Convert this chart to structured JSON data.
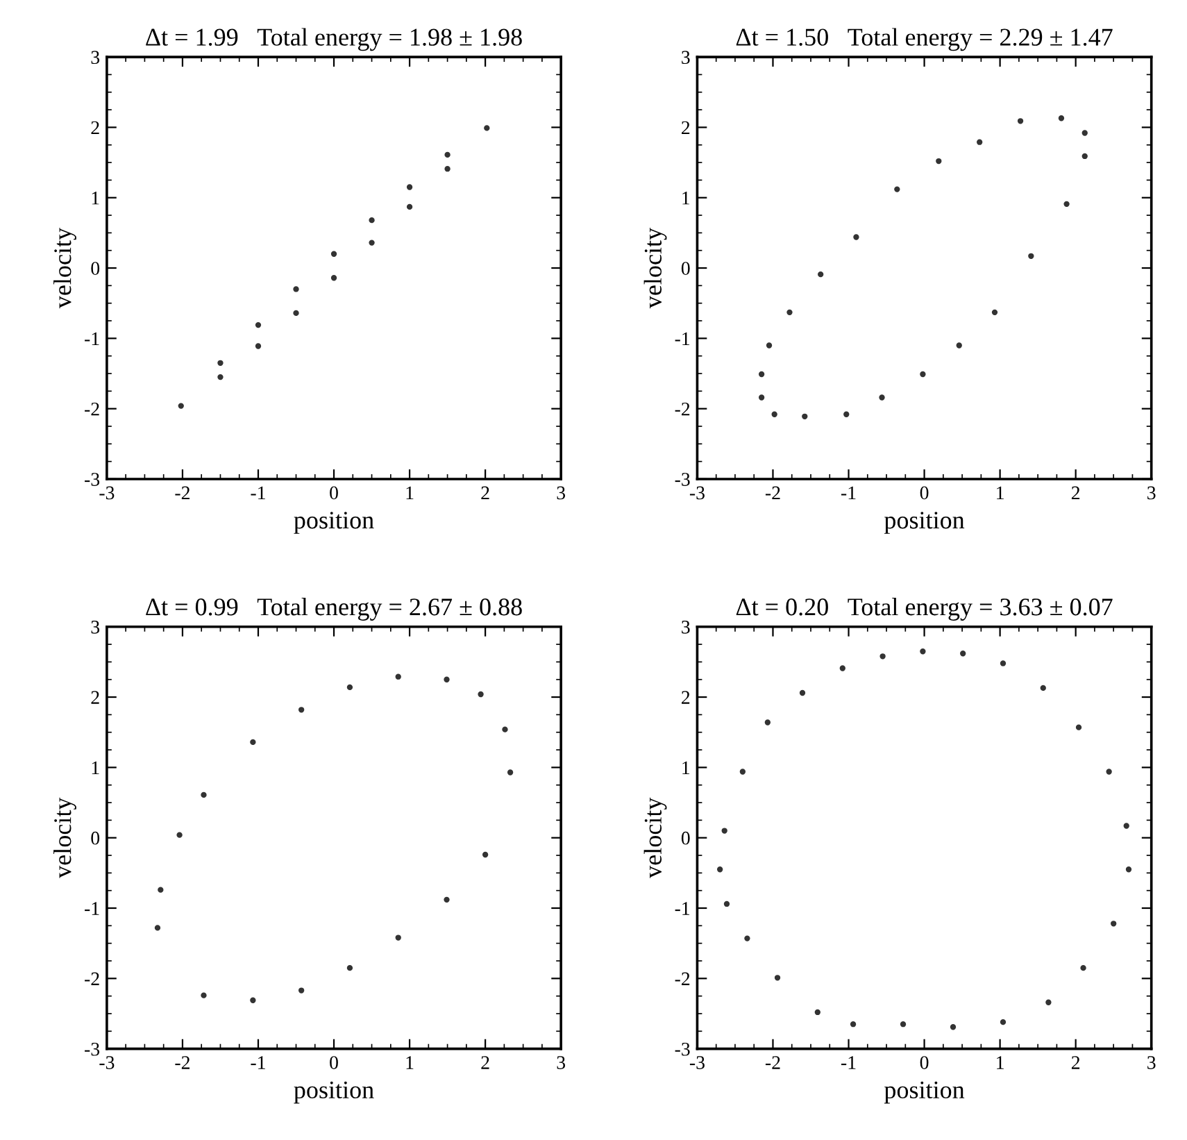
{
  "chart_data": [
    {
      "type": "scatter",
      "title": "Δt = 1.99   Total energy = 1.98 ± 1.98",
      "xlabel": "position",
      "ylabel": "velocity",
      "xlim": [
        -3,
        3
      ],
      "ylim": [
        -3,
        3
      ],
      "xticks": [
        -3,
        -2,
        -1,
        0,
        1,
        2,
        3
      ],
      "yticks": [
        -3,
        -2,
        -1,
        0,
        1,
        2,
        3
      ],
      "grid": false,
      "marker": "circle",
      "series": [
        {
          "color": "#333333",
          "x": [
            -2.02,
            -1.5,
            -1.0,
            -0.5,
            0.0,
            0.5,
            1.0,
            1.5,
            2.02,
            1.5,
            1.0,
            0.5,
            0.0,
            -0.5,
            -1.0,
            -1.5
          ],
          "values": [
            -1.96,
            -1.35,
            -0.81,
            -0.3,
            0.2,
            0.68,
            1.15,
            1.61,
            1.99,
            1.41,
            0.87,
            0.36,
            -0.14,
            -0.64,
            -1.11,
            -1.55
          ]
        }
      ]
    },
    {
      "type": "scatter",
      "title": "Δt = 1.50   Total energy = 2.29 ± 1.47",
      "xlabel": "position",
      "ylabel": "velocity",
      "xlim": [
        -3,
        3
      ],
      "ylim": [
        -3,
        3
      ],
      "xticks": [
        -3,
        -2,
        -1,
        0,
        1,
        2,
        3
      ],
      "yticks": [
        -3,
        -2,
        -1,
        0,
        1,
        2,
        3
      ],
      "grid": false,
      "marker": "circle",
      "series": [
        {
          "color": "#333333",
          "x": [
            -2.15,
            -2.15,
            -1.98,
            -1.58,
            -1.03,
            -0.56,
            -0.02,
            0.46,
            0.93,
            1.41,
            1.88,
            2.12,
            2.12,
            1.81,
            1.27,
            0.73,
            0.19,
            -0.36,
            -0.9,
            -1.37,
            -1.78,
            -2.05
          ],
          "values": [
            -1.51,
            -1.84,
            -2.08,
            -2.11,
            -2.08,
            -1.84,
            -1.51,
            -1.1,
            -0.63,
            0.17,
            0.91,
            1.59,
            1.92,
            2.13,
            2.09,
            1.79,
            1.52,
            1.12,
            0.44,
            -0.09,
            -0.63,
            -1.1
          ]
        }
      ]
    },
    {
      "type": "scatter",
      "title": "Δt = 0.99   Total energy = 2.67 ± 0.88",
      "xlabel": "position",
      "ylabel": "velocity",
      "xlim": [
        -3,
        3
      ],
      "ylim": [
        -3,
        3
      ],
      "xticks": [
        -3,
        -2,
        -1,
        0,
        1,
        2,
        3
      ],
      "yticks": [
        -3,
        -2,
        -1,
        0,
        1,
        2,
        3
      ],
      "grid": false,
      "marker": "circle",
      "series": [
        {
          "color": "#333333",
          "x": [
            -2.33,
            -1.72,
            -1.07,
            -0.43,
            0.21,
            0.85,
            1.49,
            2.0,
            2.33,
            2.26,
            1.94,
            1.49,
            0.85,
            0.21,
            -0.43,
            -1.07,
            -1.72,
            -2.04,
            -2.29
          ],
          "values": [
            -1.28,
            -2.24,
            -2.31,
            -2.17,
            -1.85,
            -1.42,
            -0.88,
            -0.24,
            0.93,
            1.54,
            2.04,
            2.25,
            2.29,
            2.14,
            1.82,
            1.36,
            0.61,
            0.04,
            -0.74
          ]
        }
      ]
    },
    {
      "type": "scatter",
      "title": "Δt = 0.20   Total energy = 3.63 ± 0.07",
      "xlabel": "position",
      "ylabel": "velocity",
      "xlim": [
        -3,
        3
      ],
      "ylim": [
        -3,
        3
      ],
      "xticks": [
        -3,
        -2,
        -1,
        0,
        1,
        2,
        3
      ],
      "yticks": [
        -3,
        -2,
        -1,
        0,
        1,
        2,
        3
      ],
      "grid": false,
      "marker": "circle",
      "series": [
        {
          "color": "#333333",
          "x": [
            -2.7,
            -2.64,
            -2.4,
            -2.07,
            -1.61,
            -1.08,
            -0.55,
            -0.02,
            0.51,
            1.04,
            1.57,
            2.04,
            2.44,
            2.67,
            2.7,
            2.5,
            2.1,
            1.64,
            1.04,
            0.38,
            -0.28,
            -0.94,
            -1.41,
            -1.94,
            -2.34,
            -2.61
          ],
          "values": [
            -0.45,
            0.1,
            0.94,
            1.64,
            2.06,
            2.41,
            2.58,
            2.65,
            2.62,
            2.48,
            2.13,
            1.57,
            0.94,
            0.17,
            -0.45,
            -1.22,
            -1.85,
            -2.34,
            -2.62,
            -2.69,
            -2.65,
            -2.65,
            -2.48,
            -1.99,
            -1.43,
            -0.94
          ]
        }
      ]
    }
  ]
}
